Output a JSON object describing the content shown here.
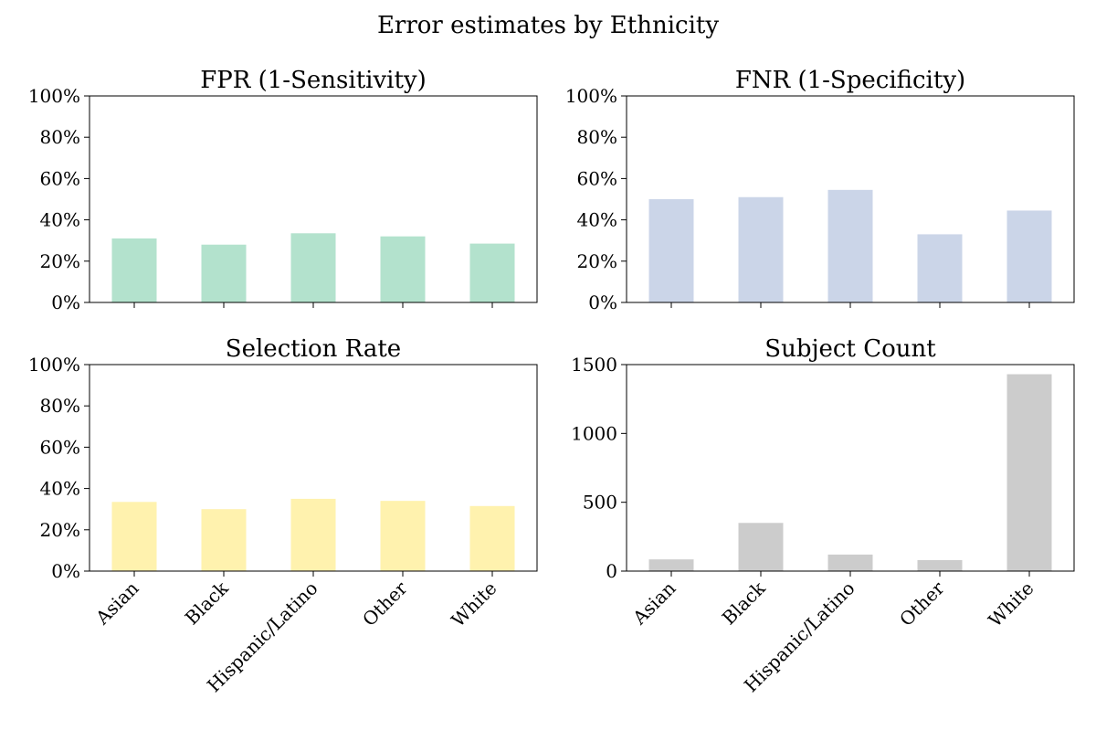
{
  "suptitle": "Error estimates by Ethnicity",
  "chart_data": [
    {
      "type": "bar",
      "title": "FPR (1-Sensitivity)",
      "categories": [
        "Asian",
        "Black",
        "Hispanic/Latino",
        "Other",
        "White"
      ],
      "values": [
        0.31,
        0.28,
        0.335,
        0.32,
        0.285
      ],
      "ylim": [
        0,
        1
      ],
      "yticks": [
        0,
        0.2,
        0.4,
        0.6,
        0.8,
        1.0
      ],
      "ytick_format": "percent",
      "color": "#b3e2cd",
      "show_xtick_labels": false
    },
    {
      "type": "bar",
      "title": "FNR (1-Specificity)",
      "categories": [
        "Asian",
        "Black",
        "Hispanic/Latino",
        "Other",
        "White"
      ],
      "values": [
        0.5,
        0.51,
        0.545,
        0.33,
        0.445
      ],
      "ylim": [
        0,
        1
      ],
      "yticks": [
        0,
        0.2,
        0.4,
        0.6,
        0.8,
        1.0
      ],
      "ytick_format": "percent",
      "color": "#cbd5e8",
      "show_xtick_labels": false
    },
    {
      "type": "bar",
      "title": "Selection Rate",
      "categories": [
        "Asian",
        "Black",
        "Hispanic/Latino",
        "Other",
        "White"
      ],
      "values": [
        0.335,
        0.3,
        0.35,
        0.34,
        0.315
      ],
      "ylim": [
        0,
        1
      ],
      "yticks": [
        0,
        0.2,
        0.4,
        0.6,
        0.8,
        1.0
      ],
      "ytick_format": "percent",
      "color": "#fff2ae",
      "show_xtick_labels": true
    },
    {
      "type": "bar",
      "title": "Subject Count",
      "categories": [
        "Asian",
        "Black",
        "Hispanic/Latino",
        "Other",
        "White"
      ],
      "values": [
        85,
        350,
        120,
        80,
        1430
      ],
      "ylim": [
        0,
        1500
      ],
      "yticks": [
        0,
        500,
        1000,
        1500
      ],
      "ytick_format": "number",
      "color": "#cccccc",
      "show_xtick_labels": true
    }
  ]
}
